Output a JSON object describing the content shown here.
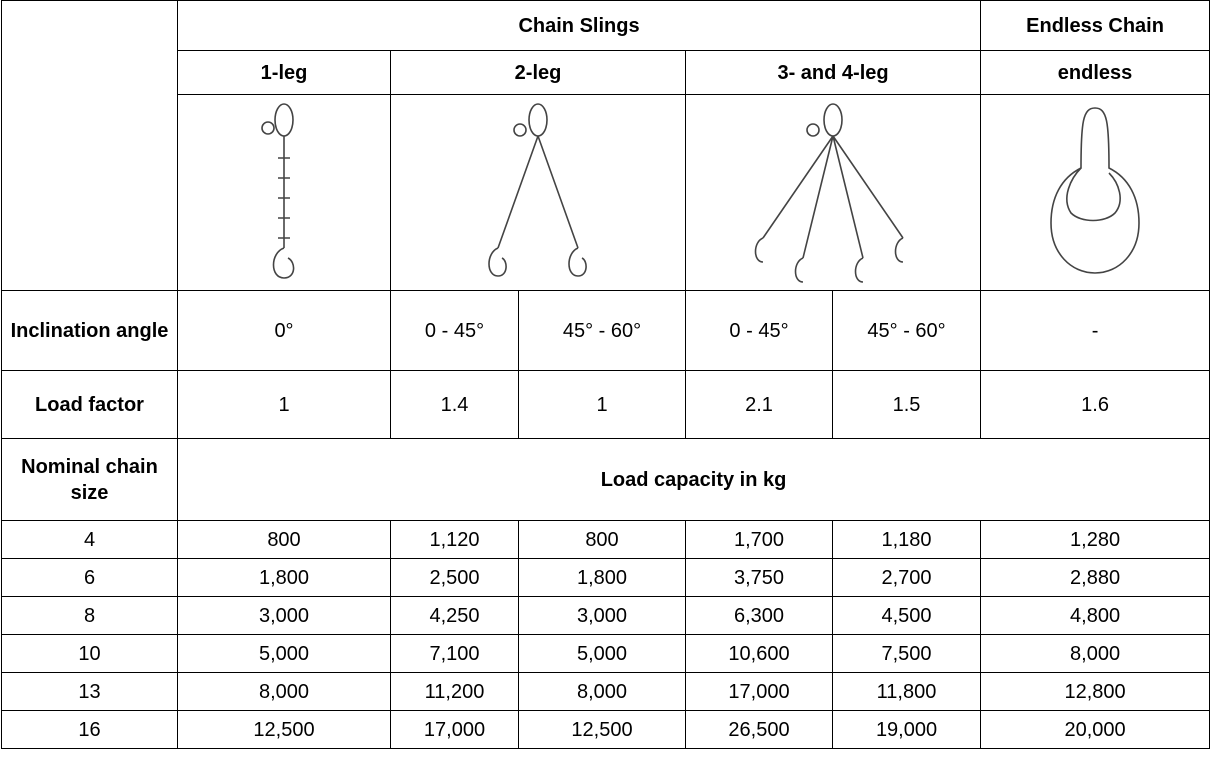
{
  "header": {
    "group": "Chain Slings",
    "endless_group": "Endless Chain",
    "legs": [
      "1-leg",
      "2-leg",
      "3- and 4-leg",
      "endless"
    ]
  },
  "inclination": {
    "label": "Inclination angle",
    "values": [
      "0°",
      "0 - 45°",
      "45° - 60°",
      "0 - 45°",
      "45° - 60°",
      "-"
    ]
  },
  "load_factor": {
    "label": "Load factor",
    "values": [
      "1",
      "1.4",
      "1",
      "2.1",
      "1.5",
      "1.6"
    ]
  },
  "capacity": {
    "size_label": "Nominal chain size",
    "label": "Load capacity in kg",
    "rows": [
      [
        "4",
        "800",
        "1,120",
        "800",
        "1,700",
        "1,180",
        "1,280"
      ],
      [
        "6",
        "1,800",
        "2,500",
        "1,800",
        "3,750",
        "2,700",
        "2,880"
      ],
      [
        "8",
        "3,000",
        "4,250",
        "3,000",
        "6,300",
        "4,500",
        "4,800"
      ],
      [
        "10",
        "5,000",
        "7,100",
        "5,000",
        "10,600",
        "7,500",
        "8,000"
      ],
      [
        "13",
        "8,000",
        "11,200",
        "8,000",
        "17,000",
        "11,800",
        "12,800"
      ],
      [
        "16",
        "12,500",
        "17,000",
        "12,500",
        "26,500",
        "19,000",
        "20,000"
      ]
    ]
  }
}
